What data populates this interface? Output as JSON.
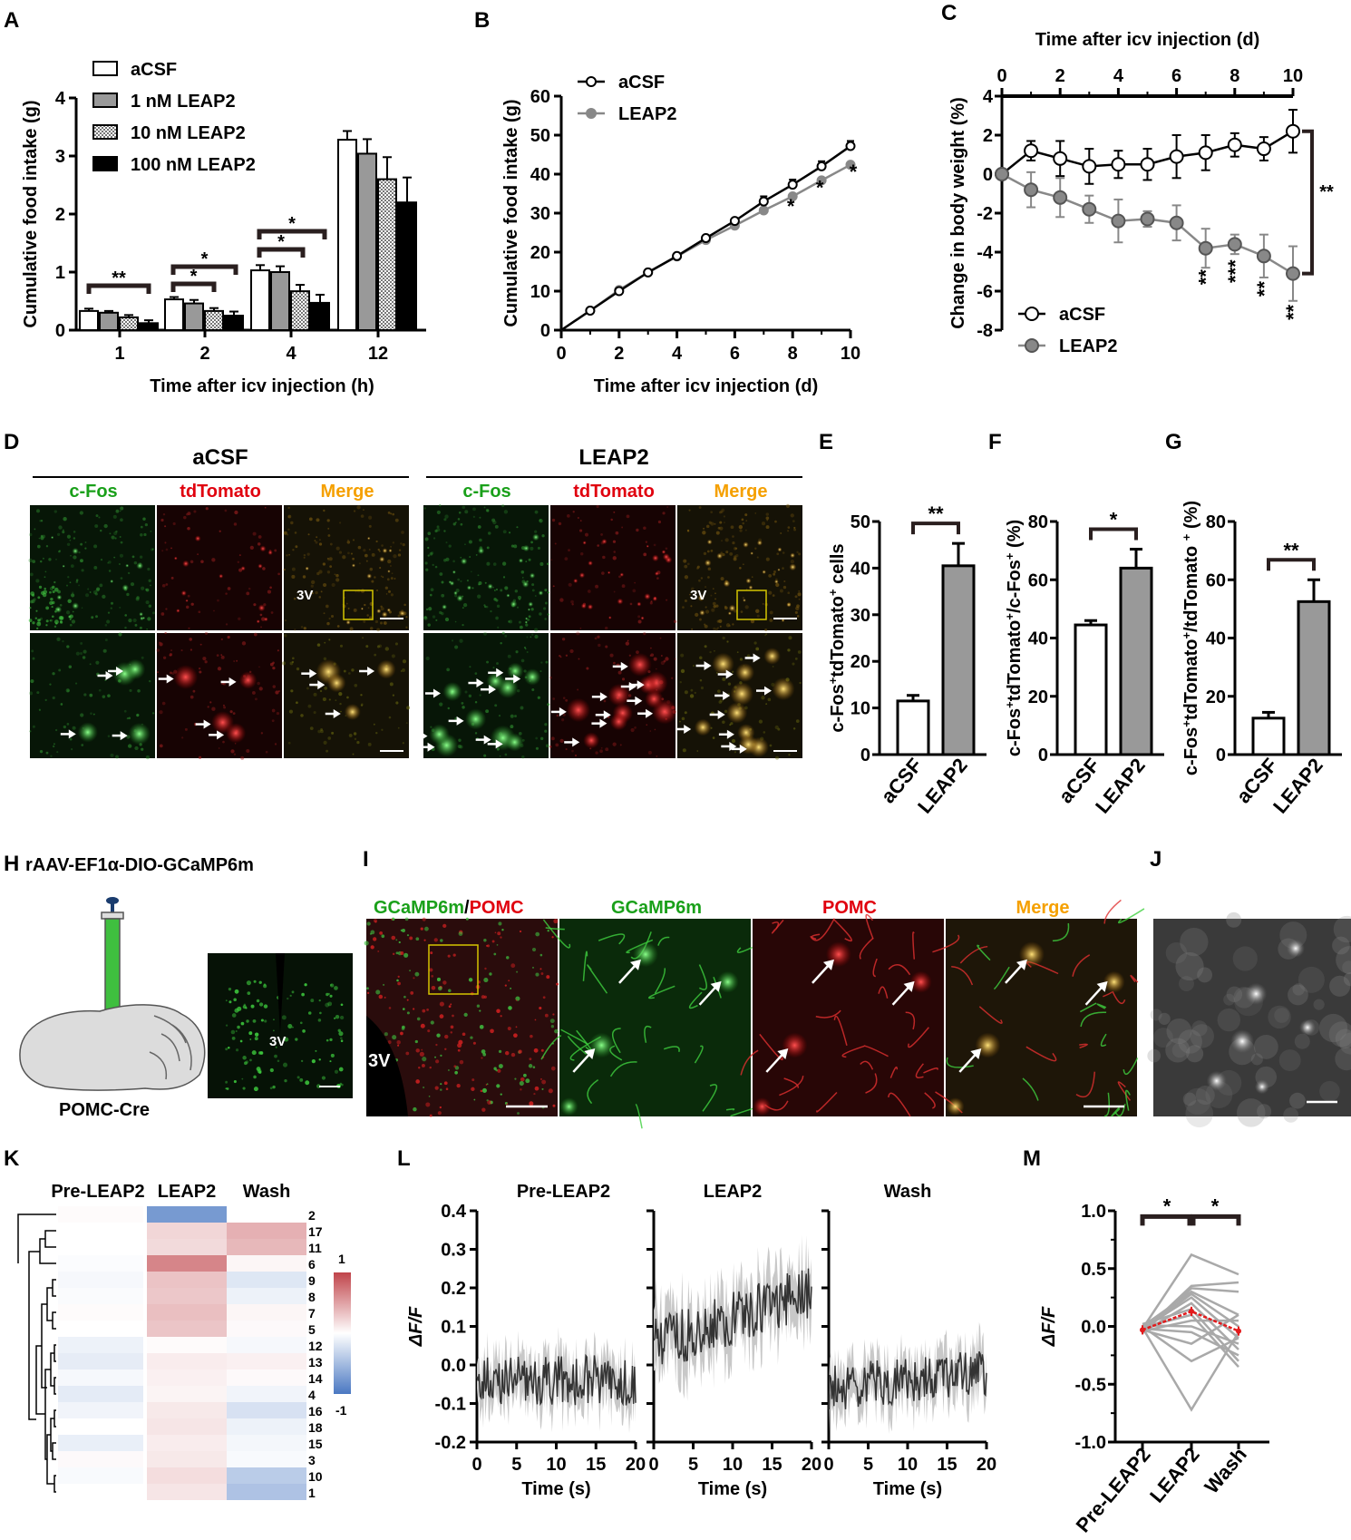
{
  "panel_letters": [
    "A",
    "B",
    "C",
    "D",
    "E",
    "F",
    "G",
    "H",
    "I",
    "J",
    "K",
    "L",
    "M"
  ],
  "chart_data": [
    {
      "id": "A",
      "type": "bar",
      "categories": [
        "1",
        "2",
        "4",
        "12"
      ],
      "xlabel": "Time after icv injection (h)",
      "ylabel": "Cumulative food intake (g)",
      "ylim": [
        0,
        4
      ],
      "yticks": [
        "0",
        "1",
        "2",
        "3",
        "4"
      ],
      "series": [
        {
          "name": "aCSF",
          "color": "#ffffff",
          "values": [
            0.33,
            0.53,
            1.03,
            3.28
          ],
          "err": [
            0.04,
            0.04,
            0.09,
            0.15
          ]
        },
        {
          "name": "1 nM LEAP2",
          "color": "#999999",
          "values": [
            0.3,
            0.46,
            1.0,
            3.04
          ],
          "err": [
            0.03,
            0.06,
            0.1,
            0.25
          ]
        },
        {
          "name": "10 nM LEAP2",
          "color": "#dddddd",
          "values": [
            0.22,
            0.33,
            0.67,
            2.6
          ],
          "err": [
            0.04,
            0.05,
            0.11,
            0.38
          ]
        },
        {
          "name": "100 nM LEAP2",
          "color": "#000000",
          "values": [
            0.12,
            0.25,
            0.47,
            2.2
          ],
          "err": [
            0.05,
            0.07,
            0.14,
            0.43
          ]
        }
      ],
      "significance": [
        "**",
        "*",
        "*",
        "*",
        "*"
      ]
    },
    {
      "id": "B",
      "type": "line",
      "x": [
        0,
        1,
        2,
        3,
        4,
        5,
        6,
        7,
        8,
        9,
        10
      ],
      "xlabel": "Time after icv injection (d)",
      "ylabel": "Cumulative food intake (g)",
      "ylim": [
        0,
        60
      ],
      "yticks": [
        "0",
        "10",
        "20",
        "30",
        "40",
        "50",
        "60"
      ],
      "xticks": [
        "0",
        "2",
        "4",
        "6",
        "8",
        "10"
      ],
      "series": [
        {
          "name": "aCSF",
          "color": "#000000",
          "values": [
            0,
            5.0,
            10.0,
            14.8,
            19.0,
            23.6,
            28.0,
            33.0,
            37.3,
            42.0,
            47.2
          ]
        },
        {
          "name": "LEAP2",
          "color": "#888888",
          "values": [
            0,
            5.0,
            10.3,
            14.8,
            18.9,
            23.1,
            26.8,
            30.7,
            34.3,
            38.4,
            42.4
          ]
        }
      ],
      "significance": [
        "*",
        "*",
        "*"
      ]
    },
    {
      "id": "C",
      "type": "line",
      "x": [
        0,
        1,
        2,
        3,
        4,
        5,
        6,
        7,
        8,
        9,
        10
      ],
      "xlabel": "Time after icv injection (d)",
      "ylabel": "Change in body weight (%)",
      "ylim": [
        -8,
        4
      ],
      "yticks": [
        "4",
        "2",
        "0",
        "-2",
        "-4",
        "-6",
        "-8"
      ],
      "xticks": [
        "0",
        "2",
        "4",
        "6",
        "8",
        "10"
      ],
      "series": [
        {
          "name": "aCSF",
          "color": "#000000",
          "values": [
            0,
            1.2,
            0.8,
            0.4,
            0.5,
            0.5,
            0.9,
            1.1,
            1.5,
            1.3,
            2.2
          ]
        },
        {
          "name": "LEAP2",
          "color": "#888888",
          "values": [
            0,
            -0.8,
            -1.2,
            -1.8,
            -2.4,
            -2.3,
            -2.5,
            -3.8,
            -3.6,
            -4.2,
            -5.1
          ]
        }
      ],
      "significance": [
        "**",
        "**",
        "***",
        "**",
        "**"
      ]
    },
    {
      "id": "E",
      "type": "bar",
      "categories": [
        "aCSF",
        "LEAP2"
      ],
      "ylabel_parts": [
        "c-Fos",
        "+",
        "tdTomato",
        "+",
        " cells"
      ],
      "ylim": [
        0,
        50
      ],
      "yticks": [
        "0",
        "10",
        "20",
        "30",
        "40",
        "50"
      ],
      "values": [
        11.5,
        40.5
      ],
      "err": [
        1.2,
        4.8
      ],
      "significance": "**"
    },
    {
      "id": "F",
      "type": "bar",
      "categories": [
        "aCSF",
        "LEAP2"
      ],
      "ylabel_parts": [
        "c-Fos",
        "+",
        "tdTomato",
        "+",
        "/c-Fos",
        "+",
        " (%)"
      ],
      "ylim": [
        0,
        80
      ],
      "yticks": [
        "0",
        "20",
        "40",
        "60",
        "80"
      ],
      "values": [
        44.5,
        64.0
      ],
      "err": [
        1.5,
        6.5
      ],
      "significance": "*"
    },
    {
      "id": "G",
      "type": "bar",
      "categories": [
        "aCSF",
        "LEAP2"
      ],
      "ylabel_parts": [
        "c-Fos",
        "+",
        "tdTomato",
        "+",
        "/tdTomato ",
        "+",
        " (%)"
      ],
      "ylim": [
        0,
        80
      ],
      "yticks": [
        "0",
        "20",
        "40",
        "60",
        "80"
      ],
      "values": [
        12.5,
        52.5
      ],
      "err": [
        2.0,
        7.5
      ],
      "significance": "**"
    },
    {
      "id": "L",
      "type": "line",
      "ylabel": "ΔF/F",
      "xlabel": "Time (s)",
      "ylim": [
        -0.2,
        0.4
      ],
      "yticks": [
        "0.4",
        "0.3",
        "0.2",
        "0.1",
        "0.0",
        "-0.1",
        "-0.2"
      ],
      "xticks": [
        "0",
        "5",
        "10",
        "15",
        "20"
      ],
      "subplots": [
        "Pre-LEAP2",
        "LEAP2",
        "Wash"
      ],
      "means": [
        -0.04,
        0.13,
        -0.04
      ]
    },
    {
      "id": "M",
      "type": "line",
      "categories": [
        "Pre-LEAP2",
        "LEAP2",
        "Wash"
      ],
      "ylabel": "ΔF/F",
      "ylim": [
        -1.0,
        1.0
      ],
      "yticks": [
        "1.0",
        "0.5",
        "0.0",
        "-0.5",
        "-1.0"
      ],
      "mean": [
        -0.03,
        0.13,
        -0.04
      ],
      "individual": [
        [
          -0.02,
          0.62,
          0.45
        ],
        [
          -0.05,
          0.35,
          0.38
        ],
        [
          0.0,
          0.3,
          0.1
        ],
        [
          -0.03,
          0.28,
          0.0
        ],
        [
          -0.02,
          0.25,
          -0.1
        ],
        [
          -0.05,
          0.2,
          -0.2
        ],
        [
          0.02,
          0.15,
          -0.3
        ],
        [
          -0.01,
          0.1,
          -0.35
        ],
        [
          -0.04,
          0.05,
          0.05
        ],
        [
          0.01,
          0.0,
          -0.15
        ],
        [
          -0.02,
          -0.05,
          -0.25
        ],
        [
          -0.03,
          -0.15,
          0.1
        ],
        [
          0.0,
          -0.3,
          -0.1
        ],
        [
          -0.01,
          -0.72,
          -0.05
        ],
        [
          -0.06,
          0.33,
          0.3
        ]
      ],
      "significance": [
        "*",
        "*"
      ]
    },
    {
      "id": "K",
      "type": "heatmap",
      "columns": [
        "Pre-LEAP2",
        "LEAP2",
        "Wash"
      ],
      "rows": [
        "2",
        "17",
        "11",
        "6",
        "9",
        "8",
        "7",
        "5",
        "12",
        "13",
        "14",
        "4",
        "16",
        "18",
        "15",
        "3",
        "10",
        "1"
      ],
      "values": [
        [
          0.02,
          -0.75,
          0.0
        ],
        [
          0.0,
          0.22,
          0.42
        ],
        [
          0.0,
          0.2,
          0.38
        ],
        [
          -0.02,
          0.65,
          0.05
        ],
        [
          -0.05,
          0.32,
          -0.18
        ],
        [
          -0.03,
          0.3,
          -0.1
        ],
        [
          0.02,
          0.34,
          0.05
        ],
        [
          0.0,
          0.31,
          0.03
        ],
        [
          -0.1,
          0.02,
          -0.05
        ],
        [
          -0.14,
          0.1,
          0.08
        ],
        [
          -0.05,
          0.08,
          0.03
        ],
        [
          -0.15,
          0.06,
          -0.08
        ],
        [
          -0.08,
          0.12,
          -0.22
        ],
        [
          0.0,
          0.14,
          -0.1
        ],
        [
          -0.12,
          0.1,
          -0.06
        ],
        [
          0.03,
          0.12,
          -0.04
        ],
        [
          -0.04,
          0.18,
          -0.38
        ],
        [
          0.0,
          0.14,
          -0.45
        ]
      ],
      "legend_max": "1",
      "legend_min": "-1"
    }
  ],
  "panelD": {
    "group_left": "aCSF",
    "group_right": "LEAP2",
    "channels": [
      "c-Fos",
      "tdTomato",
      "Merge"
    ],
    "label_3v": "3V"
  },
  "panelH": {
    "title": "rAAV-EF1α-DIO-GCaMP6m",
    "mouse_label": "POMC-Cre",
    "label_3v": "3V"
  },
  "panelI": {
    "title_a": "GCaMP6m",
    "title_sep": "/",
    "title_b": "POMC",
    "channels": [
      "GCaMP6m",
      "POMC",
      "Merge"
    ],
    "label_3v": "3V"
  },
  "colors": {
    "green": "#1aa01a",
    "red": "#e0000e",
    "orange": "#f5a000",
    "grey": "#888888"
  }
}
